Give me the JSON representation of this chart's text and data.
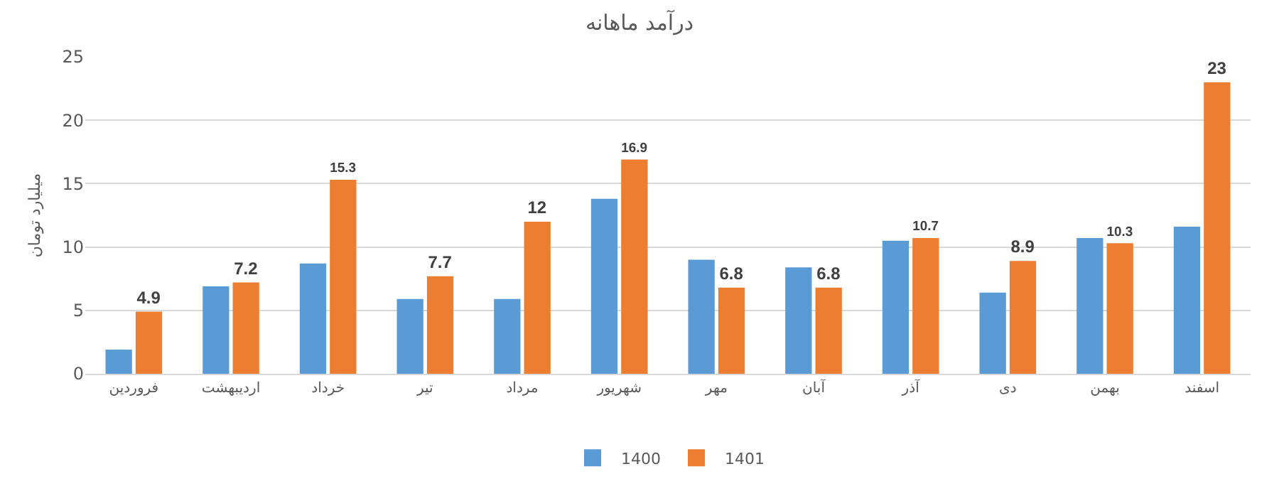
{
  "chart_data": {
    "type": "bar",
    "title": "درآمد ماهانه",
    "ylabel": "میلیارد تومان",
    "categories": [
      "فروردین",
      "اردیبهشت",
      "خرداد",
      "تیر",
      "مرداد",
      "شهریور",
      "مهر",
      "آبان",
      "آذر",
      "دی",
      "بهمن",
      "اسفند"
    ],
    "series": [
      {
        "name": "1400",
        "color": "#5b9bd5",
        "values": [
          1.9,
          6.9,
          8.7,
          5.9,
          5.9,
          13.8,
          9.0,
          8.4,
          10.5,
          6.4,
          10.7,
          11.6
        ]
      },
      {
        "name": "1401",
        "color": "#ed7d31",
        "values": [
          4.9,
          7.2,
          15.3,
          7.7,
          12,
          16.9,
          6.8,
          6.8,
          10.7,
          8.9,
          10.3,
          23
        ],
        "value_labels": [
          "4.9",
          "7.2",
          "15.3",
          "7.7",
          "12",
          "16.9",
          "6.8",
          "6.8",
          "10.7",
          "8.9",
          "10.3",
          "23"
        ]
      }
    ],
    "ylim": [
      0,
      25
    ],
    "yticks": [
      0,
      5,
      10,
      15,
      20,
      25
    ],
    "grid": "y",
    "legend": "bottom"
  }
}
